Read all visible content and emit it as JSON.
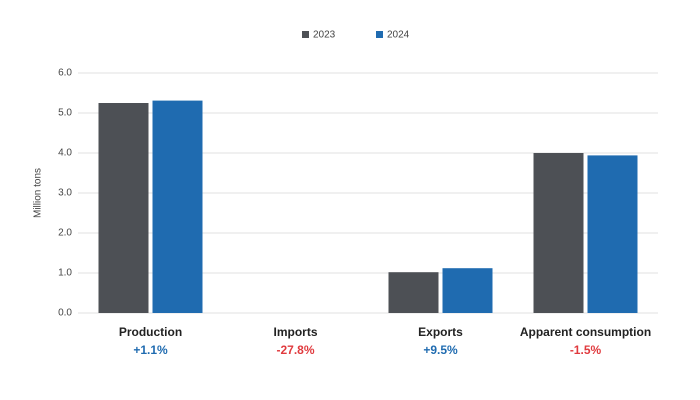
{
  "chart_data": {
    "type": "bar",
    "y_label": "Million tons",
    "categories": [
      "Production",
      "Imports",
      "Exports",
      "Apparent consumption"
    ],
    "series": [
      {
        "name": "2023",
        "color": "#4d5055",
        "values": [
          5.25,
          0,
          1.02,
          4.0
        ]
      },
      {
        "name": "2024",
        "color": "#1f6bb0",
        "values": [
          5.31,
          0,
          1.12,
          3.94
        ]
      }
    ],
    "changes": [
      {
        "text": "+1.1%",
        "color": "#1f6bb0"
      },
      {
        "text": "-27.8%",
        "color": "#e03a3e"
      },
      {
        "text": "+9.5%",
        "color": "#1f6bb0"
      },
      {
        "text": "-1.5%",
        "color": "#e03a3e"
      }
    ],
    "ylim": [
      0,
      6
    ],
    "yticks": [
      {
        "value": 0,
        "label": "0.0"
      },
      {
        "value": 1,
        "label": "1.0"
      },
      {
        "value": 2,
        "label": "2.0"
      },
      {
        "value": 3,
        "label": "3.0"
      },
      {
        "value": 4,
        "label": "4.0"
      },
      {
        "value": 5,
        "label": "5.0"
      },
      {
        "value": 6,
        "label": "6.0"
      }
    ],
    "grid": true,
    "legend": "top"
  }
}
